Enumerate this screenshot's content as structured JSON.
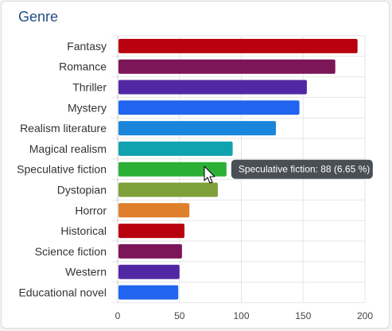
{
  "widget": {
    "title": "Genre"
  },
  "chart_data": {
    "type": "bar",
    "orientation": "horizontal",
    "title": "Genre",
    "categories": [
      "Fantasy",
      "Romance",
      "Thriller",
      "Mystery",
      "Realism literature",
      "Magical realism",
      "Speculative fiction",
      "Dystopian",
      "Horror",
      "Historical",
      "Science fiction",
      "Western",
      "Educational novel"
    ],
    "values": [
      194,
      176,
      153,
      147,
      128,
      93,
      88,
      81,
      58,
      54,
      52,
      50,
      49
    ],
    "colors": [
      "#b8000f",
      "#7d1559",
      "#5227a3",
      "#2164f0",
      "#1a86db",
      "#0fa3b0",
      "#2bb035",
      "#7da03a",
      "#e07f2b",
      "#b8000f",
      "#7d1559",
      "#5227a3",
      "#2164f0"
    ],
    "xlim": [
      0,
      200
    ],
    "xticks": [
      0,
      50,
      100,
      150,
      200
    ],
    "grid": true,
    "legend": "none",
    "tooltip": {
      "text": "Speculative fiction: 88 (6.65 %)",
      "category": "Speculative fiction"
    }
  }
}
